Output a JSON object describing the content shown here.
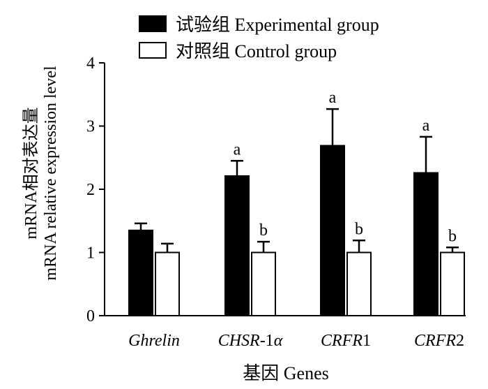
{
  "chart_data": {
    "type": "bar",
    "categories": [
      "Ghrelin",
      "CHSR-1α",
      "CRFR1",
      "CRFR2"
    ],
    "category_parts": [
      [
        {
          "text": "Ghrelin",
          "italic": true
        }
      ],
      [
        {
          "text": "CHSR",
          "italic": true
        },
        {
          "text": "-1",
          "italic": false
        },
        {
          "text": "α",
          "italic": true
        }
      ],
      [
        {
          "text": "CRFR",
          "italic": true
        },
        {
          "text": "1",
          "italic": false
        }
      ],
      [
        {
          "text": "CRFR",
          "italic": true
        },
        {
          "text": "2",
          "italic": false
        }
      ]
    ],
    "series": [
      {
        "name": "试验组 Experimental group",
        "values": [
          1.35,
          2.21,
          2.69,
          2.26
        ],
        "errors": [
          0.11,
          0.24,
          0.58,
          0.57
        ],
        "annotations": [
          "",
          "a",
          "a",
          "a"
        ],
        "color": "#000000"
      },
      {
        "name": "对照组 Control group",
        "values": [
          1.0,
          1.0,
          1.0,
          1.0
        ],
        "errors": [
          0.14,
          0.17,
          0.19,
          0.08
        ],
        "annotations": [
          "",
          "b",
          "b",
          "b"
        ],
        "color": "#ffffff"
      }
    ],
    "ylabel_cn": "mRNA相对表达量",
    "ylabel_en": "mRNA relative expression level",
    "xlabel": "基因  Genes",
    "ylim": [
      0,
      4
    ],
    "yticks": [
      0,
      1,
      2,
      3,
      4
    ],
    "legend_position": "top",
    "grid": false
  }
}
